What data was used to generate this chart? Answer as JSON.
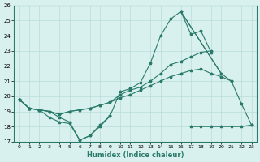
{
  "xlabel": "Humidex (Indice chaleur)",
  "x": [
    0,
    1,
    2,
    3,
    4,
    5,
    6,
    7,
    8,
    9,
    10,
    11,
    12,
    13,
    14,
    15,
    16,
    17,
    18,
    19,
    20,
    21,
    22,
    23
  ],
  "line_peak": [
    19.8,
    19.2,
    19.1,
    19.0,
    18.6,
    18.3,
    17.1,
    17.4,
    18.0,
    18.7,
    20.3,
    20.5,
    20.9,
    22.2,
    24.0,
    25.1,
    25.6,
    24.1,
    24.3,
    22.9,
    null,
    null,
    null,
    null
  ],
  "line_peak2": [
    null,
    null,
    null,
    null,
    null,
    null,
    null,
    null,
    null,
    null,
    null,
    null,
    null,
    null,
    null,
    null,
    25.6,
    null,
    null,
    null,
    21.5,
    21.0,
    19.5,
    18.1
  ],
  "line_upper": [
    19.8,
    19.2,
    19.1,
    19.0,
    18.8,
    19.0,
    19.1,
    19.2,
    19.4,
    19.6,
    20.1,
    20.4,
    20.6,
    21.0,
    21.5,
    22.1,
    22.3,
    22.6,
    22.9,
    23.0,
    null,
    null,
    null,
    null
  ],
  "line_lower": [
    19.8,
    19.2,
    19.1,
    19.0,
    18.8,
    19.0,
    19.1,
    19.2,
    19.4,
    19.6,
    19.9,
    20.1,
    20.4,
    20.7,
    21.0,
    21.3,
    21.5,
    21.7,
    21.8,
    21.5,
    21.3,
    21.0,
    null,
    null
  ],
  "line_flat": [
    null,
    null,
    null,
    null,
    null,
    null,
    null,
    null,
    null,
    null,
    null,
    null,
    null,
    null,
    null,
    null,
    null,
    18.0,
    18.0,
    18.0,
    18.0,
    18.0,
    18.0,
    18.1
  ],
  "line_zigzag": [
    19.8,
    19.2,
    19.1,
    18.6,
    18.3,
    18.2,
    17.1,
    17.4,
    18.1,
    18.7,
    null,
    null,
    null,
    null,
    null,
    null,
    null,
    null,
    null,
    null,
    null,
    null,
    null,
    null
  ],
  "color": "#2a7a6a",
  "bg_color": "#d8f0ee",
  "grid_color": "#b8dcd8",
  "ylim": [
    17,
    26
  ],
  "xlim": [
    -0.5,
    23.5
  ],
  "yticks": [
    17,
    18,
    19,
    20,
    21,
    22,
    23,
    24,
    25,
    26
  ],
  "xticks": [
    0,
    1,
    2,
    3,
    4,
    5,
    6,
    7,
    8,
    9,
    10,
    11,
    12,
    13,
    14,
    15,
    16,
    17,
    18,
    19,
    20,
    21,
    22,
    23
  ]
}
